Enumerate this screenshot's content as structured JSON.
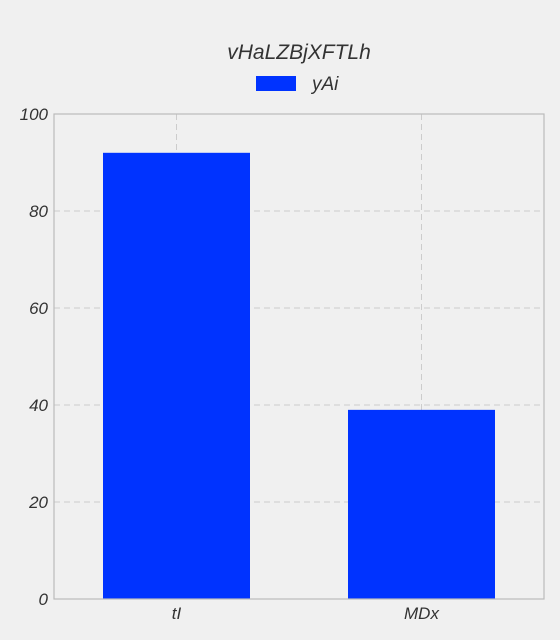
{
  "chart_data": {
    "type": "bar",
    "title": "vHaLZBjXFTLh",
    "xlabel": "",
    "ylabel": "",
    "categories": [
      "tI",
      "MDx"
    ],
    "series": [
      {
        "name": "yAi",
        "values": [
          92,
          39
        ],
        "color": "#0033ff"
      }
    ],
    "ylim": [
      0,
      100
    ],
    "yticks": [
      0,
      20,
      40,
      60,
      80,
      100
    ],
    "grid": true,
    "legend": "top-center",
    "background_color": "#f0f0f0",
    "grid_color": "#cccccc",
    "axis_color": "#bbbbbb"
  }
}
